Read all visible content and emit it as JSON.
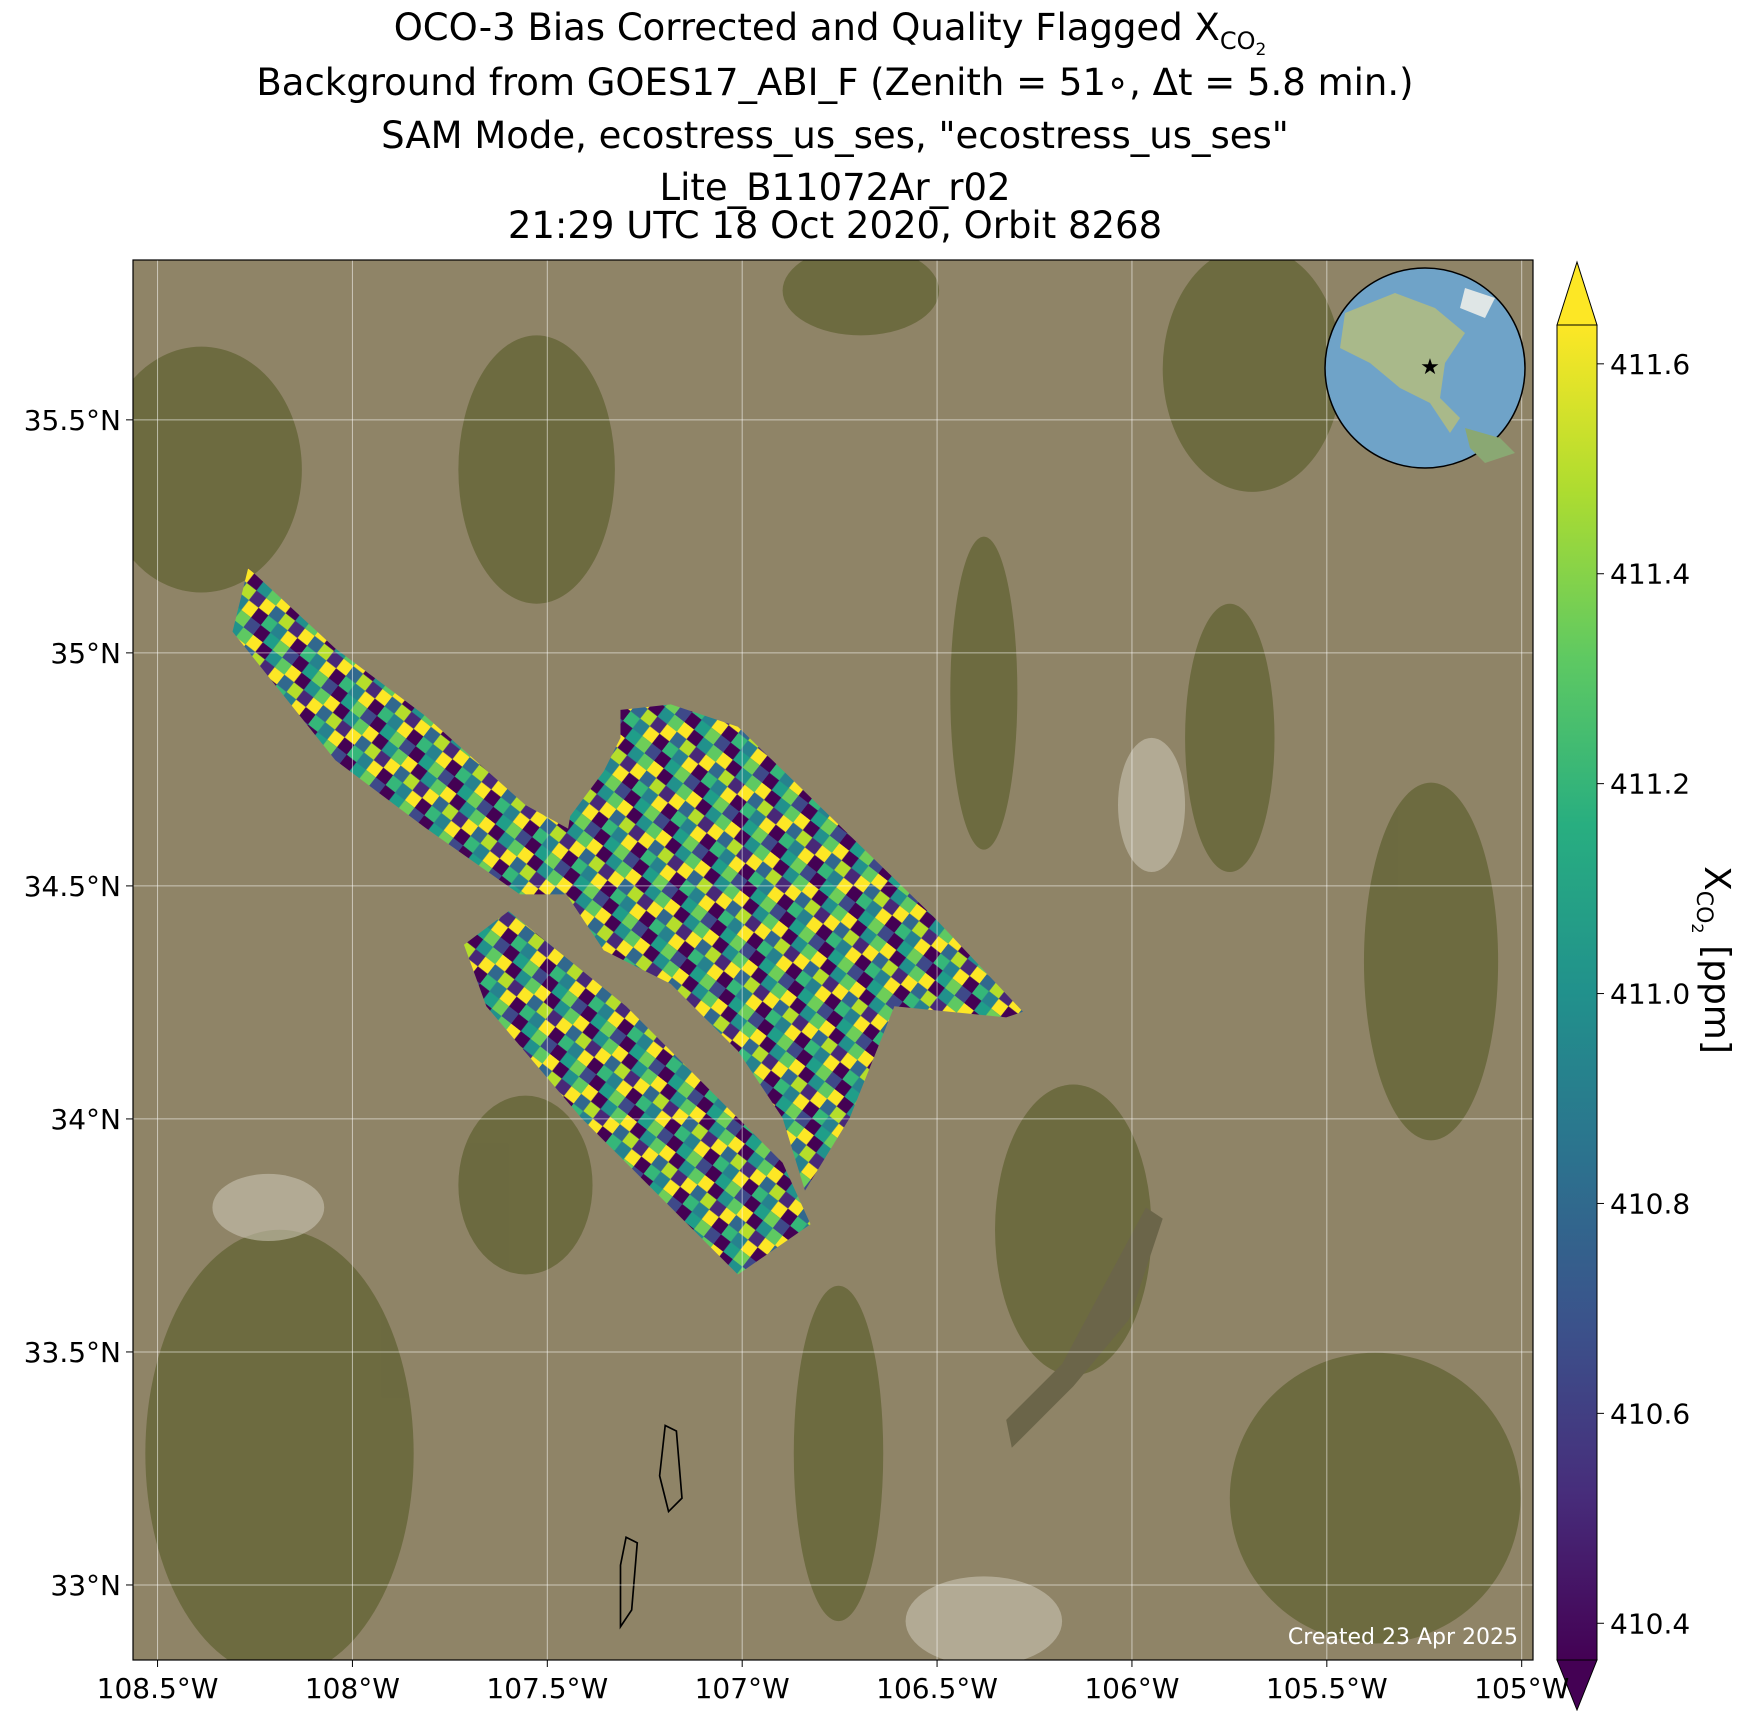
{
  "chart_data": {
    "type": "map",
    "title": {
      "symbol": "X",
      "sub": "CO",
      "subsub": "2",
      "line1": "OCO-3 Bias Corrected and Quality Flagged",
      "line2": "Background from GOES17_ABI_F (Zenith = 51∘, Δt =  5.8 min.)",
      "line3": "SAM Mode, ecostress_us_ses, \"ecostress_us_ses\"",
      "line4": "Lite_B11072Ar_r02",
      "line5": "21:29 UTC 18 Oct 2020, Orbit 8268"
    },
    "xlim": [
      -108.563,
      -104.971
    ],
    "ylim": [
      32.839,
      35.843
    ],
    "xticks": [
      {
        "value": -108.5,
        "label": "108.5°W"
      },
      {
        "value": -108,
        "label": "108°W"
      },
      {
        "value": -107.5,
        "label": "107.5°W"
      },
      {
        "value": -107,
        "label": "107°W"
      },
      {
        "value": -106.5,
        "label": "106.5°W"
      },
      {
        "value": -106,
        "label": "106°W"
      },
      {
        "value": -105.5,
        "label": "105.5°W"
      },
      {
        "value": -105,
        "label": "105°W"
      }
    ],
    "yticks": [
      {
        "value": 33,
        "label": "33°N"
      },
      {
        "value": 33.5,
        "label": "33.5°N"
      },
      {
        "value": 34,
        "label": "34°N"
      },
      {
        "value": 34.5,
        "label": "34.5°N"
      },
      {
        "value": 35,
        "label": "35°N"
      },
      {
        "value": 35.5,
        "label": "35.5°N"
      }
    ],
    "grid": true,
    "colorbar": {
      "colormap": "viridis",
      "clim": [
        410.365,
        411.637
      ],
      "ticks": [
        410.4,
        410.6,
        410.8,
        411.0,
        411.2,
        411.4,
        411.6
      ],
      "ticklabels": [
        "410.4",
        "410.6",
        "410.8",
        "411.0",
        "411.2",
        "411.4",
        "411.6"
      ],
      "unit": "[ppm]"
    },
    "note": "Created 23 Apr 2025"
  }
}
